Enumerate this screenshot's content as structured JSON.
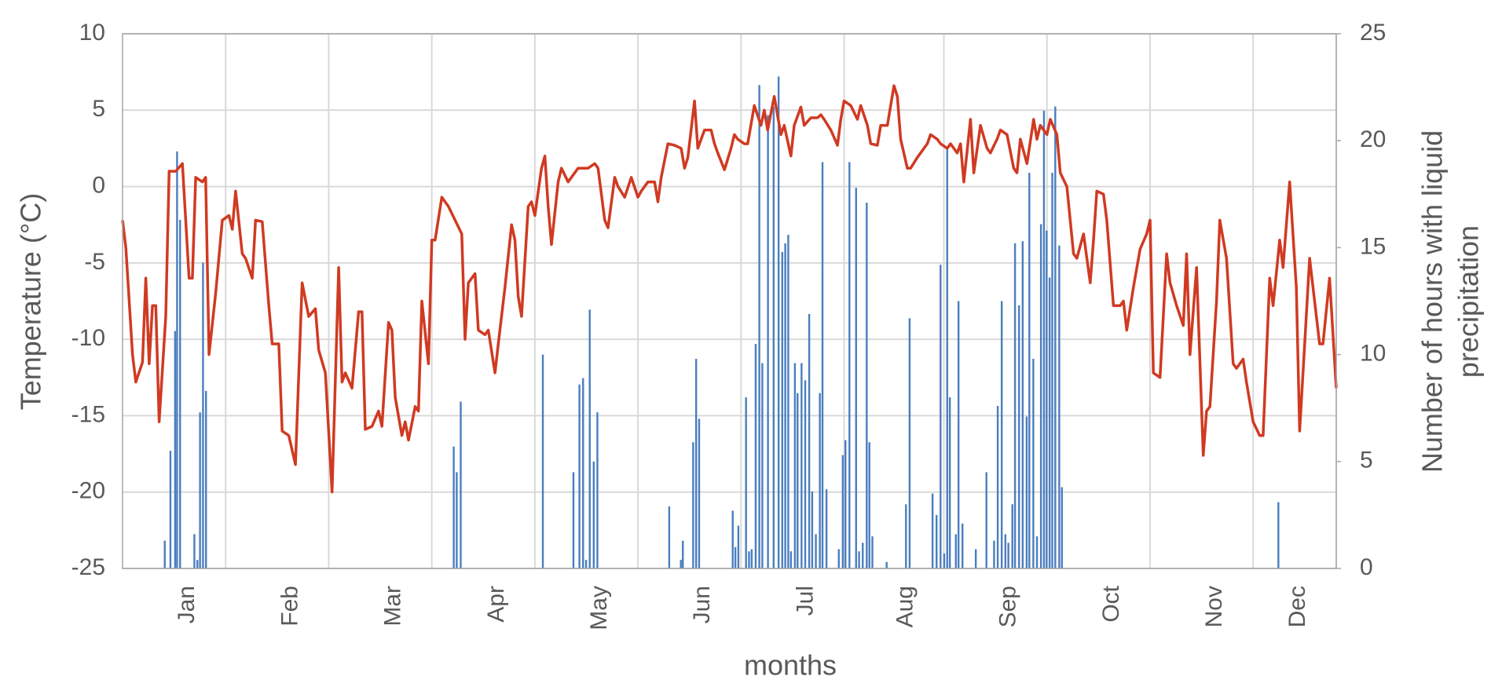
{
  "chart_data": {
    "type": "combo",
    "xlabel": "months",
    "ylabel": "Temperature (°C)",
    "y2label": [
      "Number of hours with liquid",
      "precipitation"
    ],
    "xlim": [
      0,
      365
    ],
    "xticks": [
      {
        "value": 31,
        "label": "Jan"
      },
      {
        "value": 62,
        "label": "Feb"
      },
      {
        "value": 93,
        "label": "Mar"
      },
      {
        "value": 124,
        "label": "Apr"
      },
      {
        "value": 155,
        "label": "May"
      },
      {
        "value": 186,
        "label": "Jun"
      },
      {
        "value": 217,
        "label": "Jul"
      },
      {
        "value": 247,
        "label": "Aug"
      },
      {
        "value": 278,
        "label": "Sep"
      },
      {
        "value": 309,
        "label": "Oct"
      },
      {
        "value": 340,
        "label": "Nov"
      },
      {
        "value": 365,
        "label": "Dec"
      }
    ],
    "ylim": [
      -25,
      10
    ],
    "yticks": [
      -25,
      -20,
      -15,
      -10,
      -5,
      0,
      5,
      10
    ],
    "y2lim": [
      0,
      25
    ],
    "y2ticks": [
      0,
      5,
      10,
      15,
      20,
      25
    ],
    "grid": true,
    "series": [
      {
        "type": "bar",
        "axis": "y2",
        "color": "#4a7ebf",
        "x": [
          12.7,
          14.4,
          15.8,
          16.4,
          17.3,
          21.6,
          22.5,
          23.3,
          24.2,
          25.1,
          99.6,
          100.5,
          101.7,
          126.4,
          135.6,
          137.4,
          138.5,
          139.4,
          140.5,
          141.7,
          142.8,
          164.4,
          167.9,
          168.5,
          171.6,
          172.5,
          173.4,
          183.5,
          184.3,
          185.2,
          187.5,
          188.4,
          189.2,
          190.4,
          191.5,
          192.4,
          194.1,
          195.8,
          197.3,
          198.4,
          199.3,
          200.2,
          201,
          202.2,
          203,
          204.2,
          205.3,
          206.5,
          207.4,
          208.5,
          209.7,
          210.5,
          211.7,
          215.4,
          216.6,
          217.4,
          218.6,
          220.6,
          221.5,
          222.6,
          223.8,
          224.6,
          225.5,
          229.8,
          235.6,
          236.7,
          243.6,
          244.8,
          246,
          247.1,
          248,
          248.8,
          250.6,
          251.4,
          252.6,
          256.6,
          259.8,
          262.1,
          263.2,
          264.4,
          265.5,
          266.4,
          267.6,
          268.4,
          269.6,
          270.7,
          271.9,
          272.7,
          273.9,
          275,
          276.2,
          277.1,
          277.9,
          278.8,
          279.6,
          280.5,
          281.7,
          282.5,
          347.6
        ],
        "values": [
          1.3,
          5.5,
          11.1,
          19.5,
          16.3,
          1.6,
          0.4,
          7.3,
          14.3,
          8.3,
          5.7,
          4.5,
          7.8,
          10,
          4.5,
          8.6,
          8.9,
          0.4,
          12.1,
          5,
          7.3,
          2.9,
          0.4,
          1.3,
          5.9,
          9.8,
          7,
          2.7,
          1,
          2,
          8,
          0.8,
          0.9,
          10.5,
          22.6,
          9.6,
          21.2,
          21.6,
          23,
          14.8,
          15.2,
          15.6,
          0.8,
          9.6,
          8.2,
          9.6,
          8.8,
          11.9,
          3.6,
          1.6,
          8.2,
          19,
          3.7,
          0.9,
          5.3,
          6,
          19,
          17.8,
          0.8,
          1.2,
          17.1,
          5.9,
          1.5,
          0.3,
          3,
          11.7,
          3.5,
          2.5,
          14.2,
          0.7,
          19.6,
          8,
          1.6,
          12.5,
          2.1,
          0.9,
          4.5,
          1.3,
          7.6,
          12.5,
          1.6,
          1.2,
          3,
          15.2,
          12.3,
          15.3,
          7.1,
          18.5,
          9.8,
          1.5,
          16.1,
          21.4,
          15.8,
          13.6,
          18.5,
          21.6,
          15.1,
          3.8,
          3.1
        ]
      },
      {
        "type": "line",
        "axis": "y",
        "color": "#d03a22",
        "x": [
          0,
          1,
          3,
          4,
          6,
          7,
          8,
          9,
          10,
          11,
          13,
          14,
          16,
          18,
          20,
          21,
          22,
          24,
          25,
          26,
          28,
          30,
          32,
          33,
          34,
          36,
          37,
          39,
          40,
          42,
          44,
          45,
          47,
          48,
          50,
          52,
          54,
          56,
          58,
          59,
          61,
          63,
          65,
          66,
          67,
          69,
          71,
          72,
          73,
          75,
          77,
          78,
          80,
          81,
          82,
          84,
          85,
          86,
          88,
          89,
          90,
          92,
          93,
          94,
          96,
          98,
          100,
          102,
          103,
          104,
          106,
          107,
          109,
          110,
          112,
          113,
          115,
          117,
          118,
          119,
          120,
          122,
          123,
          124,
          126,
          127,
          128,
          129,
          131,
          132,
          134,
          135,
          137,
          138,
          140,
          142,
          143,
          145,
          146,
          148,
          149,
          151,
          153,
          155,
          156,
          158,
          160,
          161,
          162,
          164,
          166,
          168,
          169,
          170,
          172,
          173,
          175,
          177,
          178,
          179,
          181,
          183,
          184,
          185,
          187,
          188,
          190,
          192,
          193,
          194,
          196,
          198,
          199,
          201,
          202,
          204,
          205,
          207,
          209,
          210,
          211,
          213,
          215,
          216,
          217,
          219,
          221,
          222,
          224,
          225,
          227,
          228,
          230,
          232,
          233,
          234,
          236,
          237,
          239,
          240,
          242,
          243,
          245,
          246,
          248,
          249,
          251,
          252,
          253,
          255,
          256,
          258,
          260,
          261,
          263,
          264,
          266,
          268,
          269,
          270,
          272,
          274,
          275,
          276,
          278,
          279,
          281,
          282,
          284,
          286,
          287,
          289,
          291,
          292,
          293,
          295,
          296,
          298,
          300,
          301,
          302,
          304,
          306,
          308,
          309,
          310,
          312,
          314,
          315,
          317,
          319,
          320,
          321,
          323,
          325,
          326,
          327,
          329,
          330,
          332,
          334,
          335,
          337,
          338,
          340,
          342,
          343,
          345,
          346,
          348,
          349,
          351,
          353,
          354,
          355,
          357,
          358,
          360,
          361,
          363,
          365
        ],
        "values": [
          -2.2,
          -4,
          -11,
          -12.8,
          -11.5,
          -6,
          -11.6,
          -7.8,
          -7.8,
          -15.4,
          -8.5,
          1,
          1,
          1.5,
          -6,
          -6,
          0.6,
          0.3,
          0.6,
          -11,
          -7,
          -2.2,
          -1.9,
          -2.8,
          -0.3,
          -4.4,
          -4.7,
          -6,
          -2.2,
          -2.3,
          -7.8,
          -10.3,
          -10.3,
          -16,
          -16.3,
          -18.2,
          -6.3,
          -8.5,
          -8,
          -10.7,
          -12.2,
          -20,
          -5.3,
          -12.8,
          -12.2,
          -13.2,
          -8.2,
          -8.2,
          -15.9,
          -15.7,
          -14.7,
          -15.7,
          -8.9,
          -9.4,
          -13.8,
          -16.3,
          -15.4,
          -16.6,
          -14.4,
          -14.7,
          -7.5,
          -11.6,
          -3.5,
          -3.5,
          -0.7,
          -1.3,
          -2.2,
          -3.1,
          -10,
          -6.3,
          -5.7,
          -9.4,
          -9.7,
          -9.4,
          -12.2,
          -10.3,
          -6.6,
          -2.5,
          -3.5,
          -7.2,
          -8.5,
          -1.3,
          -1,
          -1.9,
          1.2,
          2,
          -1.3,
          -3.8,
          0.3,
          1.2,
          0.3,
          0.6,
          1.2,
          1.2,
          1.2,
          1.5,
          1.2,
          -2.2,
          -2.7,
          0.6,
          0,
          -0.7,
          0.6,
          -0.7,
          -0.3,
          0.3,
          0.3,
          -1,
          0.6,
          2.8,
          2.7,
          2.5,
          1.2,
          1.9,
          5.6,
          2.5,
          3.7,
          3.7,
          2.8,
          2.2,
          1.1,
          2.5,
          3.4,
          3.1,
          2.8,
          2.8,
          5.3,
          4,
          5,
          3.7,
          5.9,
          3.4,
          4,
          2,
          4,
          5.2,
          4,
          4.5,
          4.5,
          4.7,
          4.4,
          3.7,
          2.7,
          4.4,
          5.6,
          5.3,
          4.4,
          5.3,
          4,
          2.8,
          2.7,
          4,
          4,
          6.6,
          5.9,
          3.1,
          1.2,
          1.2,
          1.9,
          2.2,
          2.8,
          3.4,
          3.1,
          2.8,
          2.5,
          2.8,
          2.2,
          2.8,
          0.3,
          4.4,
          0.9,
          4,
          2.5,
          2.2,
          3.1,
          3.7,
          3.4,
          1.2,
          0.9,
          3.1,
          1.5,
          4.4,
          3.1,
          4,
          3.4,
          4.4,
          3.4,
          0.9,
          0,
          -4.4,
          -4.7,
          -3.1,
          -6.3,
          -3.5,
          -0.3,
          -0.5,
          -2.2,
          -7.8,
          -7.8,
          -7.5,
          -9.4,
          -6.6,
          -4.1,
          -3.1,
          -2.2,
          -12.2,
          -12.5,
          -4.4,
          -6.3,
          -7.8,
          -9.1,
          -4.4,
          -11,
          -5.3,
          -17.6,
          -14.7,
          -14.4,
          -7.5,
          -2.2,
          -4.7,
          -11.6,
          -11.9,
          -11.3,
          -12.8,
          -15.4,
          -16.3,
          -16.3,
          -6,
          -7.8,
          -3.5,
          -5.3,
          0.3,
          -6.6,
          -16,
          -12.2,
          -4.7,
          -6.6,
          -10.3,
          -10.3,
          -6,
          -13.2
        ]
      }
    ]
  }
}
